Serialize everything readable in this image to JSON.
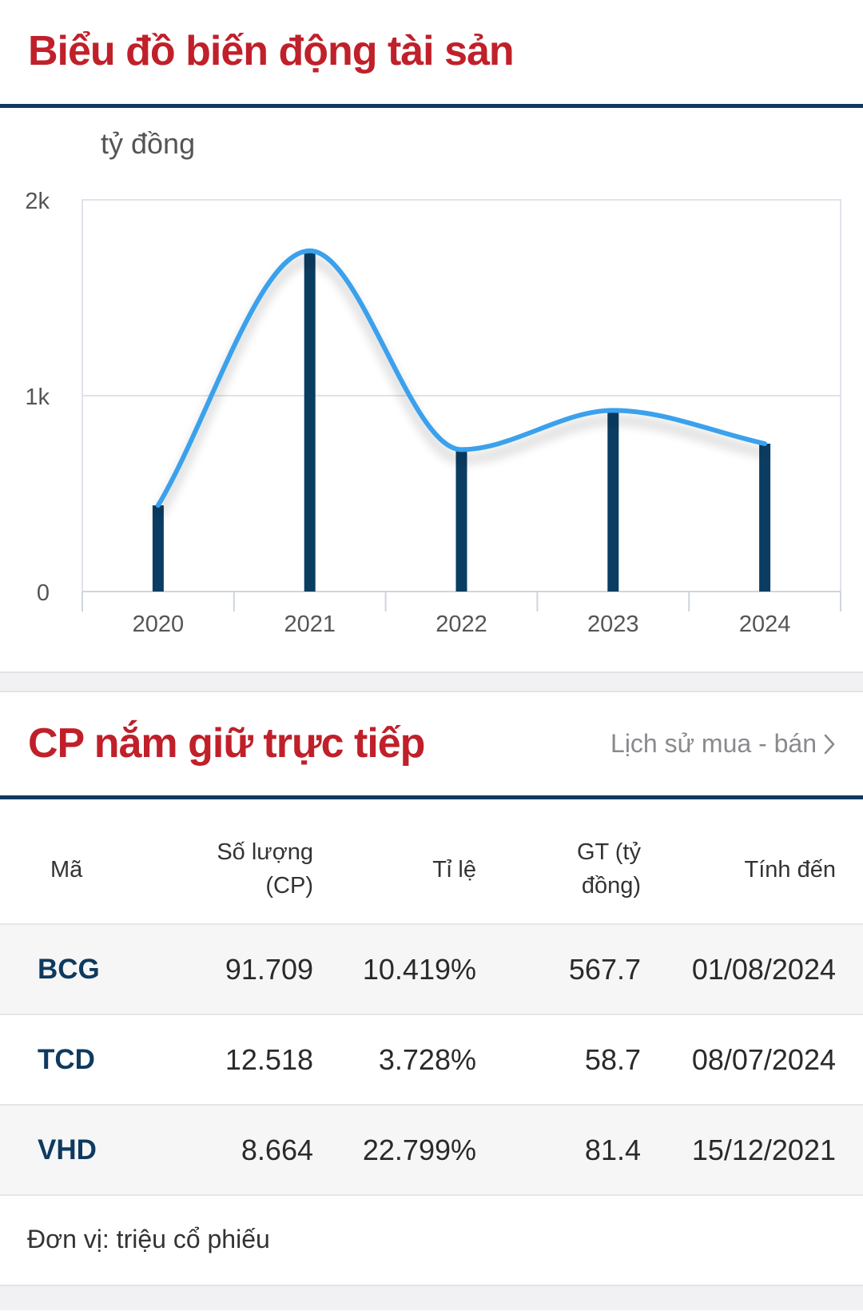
{
  "chart_section": {
    "title": "Biểu đồ biến động tài sản"
  },
  "chart_data": {
    "type": "bar",
    "title": "Biểu đồ biến động tài sản",
    "ylabel": "tỷ đồng",
    "categories": [
      "2020",
      "2021",
      "2022",
      "2023",
      "2024"
    ],
    "series": [
      {
        "values": [
          440,
          1740,
          725,
          925,
          755
        ],
        "color": "#0b3d63"
      },
      {
        "values": [
          440,
          1740,
          725,
          925,
          755
        ],
        "color": "#3aa1ec",
        "type": "smooth-line"
      }
    ],
    "ylim": [
      0,
      2000
    ],
    "yticks": [
      0,
      1000,
      2000
    ],
    "ytick_labels": [
      "0",
      "1k",
      "2k"
    ],
    "grid": true
  },
  "holdings_section": {
    "title": "CP nắm giữ trực tiếp",
    "history_link": "Lịch sử mua - bán"
  },
  "table": {
    "headers": {
      "code": "Mã",
      "qty_line1": "Số lượng",
      "qty_line2": "(CP)",
      "ratio": "Tỉ lệ",
      "value_line1": "GT (tỷ",
      "value_line2": "đồng)",
      "date": "Tính đến"
    },
    "rows": [
      {
        "code": "BCG",
        "qty": "91.709",
        "ratio": "10.419%",
        "value": "567.7",
        "date": "01/08/2024"
      },
      {
        "code": "TCD",
        "qty": "12.518",
        "ratio": "3.728%",
        "value": "58.7",
        "date": "08/07/2024"
      },
      {
        "code": "VHD",
        "qty": "8.664",
        "ratio": "22.799%",
        "value": "81.4",
        "date": "15/12/2021"
      }
    ],
    "footnote": "Đơn vị: triệu cổ phiếu"
  },
  "colors": {
    "title_red": "#c0202a",
    "navy": "#0f3a5f",
    "bar": "#0b3d63",
    "line": "#3aa1ec"
  },
  "icons": {
    "history_link": "chevron-right-icon"
  }
}
